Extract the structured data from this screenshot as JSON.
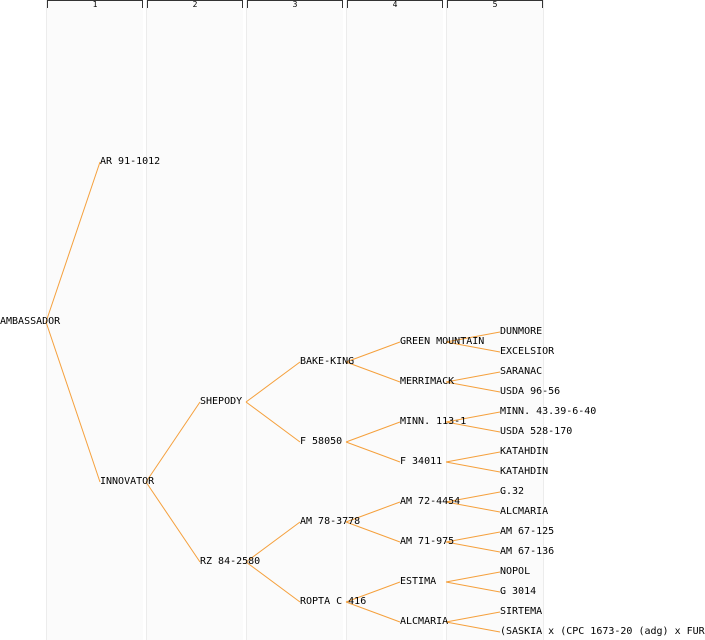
{
  "colors": {
    "edge": "#f5a03c",
    "text": "#000000",
    "column_bg": "#fbfbfb"
  },
  "generations": [
    "1",
    "2",
    "3",
    "4",
    "5"
  ],
  "nodes": {
    "n1": "AMBASSADOR",
    "n2": "AR 91-1012",
    "n3": "INNOVATOR",
    "n6": "SHEPODY",
    "n7": "RZ 84-2580",
    "n12": "BAKE-KING",
    "n13": "F 58050",
    "n14": "AM 78-3778",
    "n15": "ROPTA C 416",
    "n24": "GREEN MOUNTAIN",
    "n25": "MERRIMACK",
    "n26": "MINN. 113-1",
    "n27": "F 34011",
    "n28": "AM 72-4454",
    "n29": "AM 71-975",
    "n30": "ESTIMA",
    "n31": "ALCMARIA",
    "n48": "DUNMORE",
    "n49": "EXCELSIOR",
    "n50": "SARANAC",
    "n51": "USDA 96-56",
    "n52": "MINN. 43.39-6-40",
    "n53": "USDA 528-170",
    "n54": "KATAHDIN",
    "n55": "KATAHDIN",
    "n56": "G.32",
    "n57": "ALCMARIA",
    "n58": "AM 67-125",
    "n59": "AM 67-136",
    "n60": "NOPOL",
    "n61": "G 3014",
    "n62": "SIRTEMA",
    "n63": "(SASKIA x (CPC 1673-20 (adg) x FUR"
  }
}
